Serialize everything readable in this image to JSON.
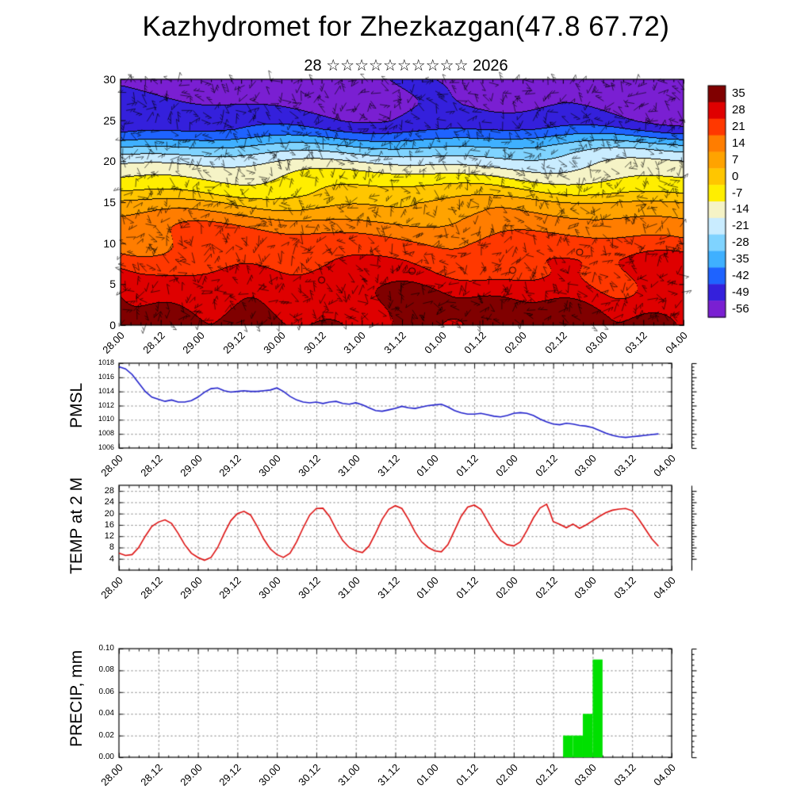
{
  "page": {
    "title": "Kazhydromet for Zhezkazgan(47.8 67.72)",
    "subtitle": "28 ☆☆☆☆☆☆☆☆☆☆ 2026"
  },
  "time_axis": {
    "labels": [
      "28.00",
      "28.12",
      "29.00",
      "29.12",
      "30.00",
      "30.12",
      "31.00",
      "31.12",
      "01.00",
      "01.12",
      "02.00",
      "02.12",
      "03.00",
      "03.12",
      "04.00"
    ],
    "total_hours": 168,
    "major_step": 12,
    "minor_step": 3
  },
  "chart_data": [
    {
      "type": "heatmap",
      "name": "upper-air-temperature-wind-section",
      "ylim": [
        0,
        30
      ],
      "yticks": [
        0,
        5,
        10,
        15,
        20,
        25,
        30
      ],
      "ytick_labels": [
        "0",
        "5",
        "10",
        "15",
        "20",
        "25",
        "30"
      ],
      "colorbar_ticks": [
        35,
        28,
        21,
        14,
        7,
        0,
        -7,
        -14,
        -21,
        -28,
        -35,
        -42,
        -49,
        -56
      ],
      "colorbar_colors": [
        "#800000",
        "#df0000",
        "#ff3800",
        "#ff7d00",
        "#ffa300",
        "#ffc600",
        "#ffee00",
        "#f5f3c6",
        "#c9ecff",
        "#7fd3ff",
        "#3fb0ff",
        "#1e63ff",
        "#3420dc",
        "#7a1fd2"
      ],
      "contour_levels": [
        28,
        21,
        14,
        7,
        0,
        -7,
        -14,
        -21,
        -28,
        -35,
        -42,
        -49,
        -56
      ],
      "mean_profile": [
        [
          0,
          31
        ],
        [
          4,
          26
        ],
        [
          8,
          20
        ],
        [
          10,
          16
        ],
        [
          12,
          11
        ],
        [
          13,
          8
        ],
        [
          14,
          4
        ],
        [
          15,
          1
        ],
        [
          16,
          -5
        ],
        [
          17,
          -9
        ],
        [
          18,
          -13
        ],
        [
          19,
          -17
        ],
        [
          20,
          -22
        ],
        [
          21,
          -28
        ],
        [
          22,
          -35
        ],
        [
          23,
          -43
        ],
        [
          24,
          -50
        ],
        [
          25,
          -54
        ],
        [
          27,
          -57
        ],
        [
          30,
          -60
        ]
      ],
      "wave_amplitude": 2.5,
      "diurnal_surface_amplitude": 4,
      "circle_markers": [
        [
          60,
          5.5
        ],
        [
          87,
          6.6
        ],
        [
          117,
          6.7
        ],
        [
          137,
          8.9
        ]
      ]
    },
    {
      "type": "line",
      "name": "pmsl",
      "label": "PMSL",
      "color": "#2222cc",
      "ylim": [
        1006,
        1018
      ],
      "yticks": [
        1006,
        1008,
        1010,
        1012,
        1014,
        1016,
        1018
      ],
      "ytick_labels": [
        "1006",
        "1008",
        "1010",
        "1012",
        "1014",
        "1016",
        "1018"
      ],
      "ylabel_size": "9px",
      "series": [
        [
          0,
          1017.5
        ],
        [
          2,
          1017.2
        ],
        [
          4,
          1016.4
        ],
        [
          6,
          1015.2
        ],
        [
          8,
          1014.0
        ],
        [
          10,
          1013.2
        ],
        [
          12,
          1012.9
        ],
        [
          14,
          1012.6
        ],
        [
          16,
          1012.8
        ],
        [
          18,
          1012.5
        ],
        [
          20,
          1012.5
        ],
        [
          22,
          1012.7
        ],
        [
          24,
          1013.2
        ],
        [
          26,
          1013.9
        ],
        [
          28,
          1014.4
        ],
        [
          30,
          1014.5
        ],
        [
          32,
          1014.1
        ],
        [
          34,
          1013.9
        ],
        [
          36,
          1014.0
        ],
        [
          38,
          1014.1
        ],
        [
          40,
          1014.0
        ],
        [
          42,
          1014.0
        ],
        [
          44,
          1014.1
        ],
        [
          46,
          1014.2
        ],
        [
          48,
          1014.5
        ],
        [
          50,
          1014.0
        ],
        [
          52,
          1013.3
        ],
        [
          54,
          1012.8
        ],
        [
          56,
          1012.5
        ],
        [
          58,
          1012.4
        ],
        [
          60,
          1012.5
        ],
        [
          62,
          1012.3
        ],
        [
          64,
          1012.5
        ],
        [
          66,
          1012.6
        ],
        [
          68,
          1012.3
        ],
        [
          70,
          1012.2
        ],
        [
          72,
          1012.4
        ],
        [
          74,
          1012.1
        ],
        [
          76,
          1011.7
        ],
        [
          78,
          1011.3
        ],
        [
          80,
          1011.2
        ],
        [
          82,
          1011.4
        ],
        [
          84,
          1011.6
        ],
        [
          86,
          1011.9
        ],
        [
          88,
          1011.7
        ],
        [
          90,
          1011.6
        ],
        [
          92,
          1011.8
        ],
        [
          94,
          1012.0
        ],
        [
          96,
          1012.1
        ],
        [
          98,
          1012.2
        ],
        [
          100,
          1011.8
        ],
        [
          102,
          1011.3
        ],
        [
          104,
          1011.0
        ],
        [
          106,
          1010.8
        ],
        [
          108,
          1010.8
        ],
        [
          110,
          1010.9
        ],
        [
          112,
          1010.7
        ],
        [
          114,
          1010.5
        ],
        [
          116,
          1010.4
        ],
        [
          118,
          1010.6
        ],
        [
          120,
          1010.9
        ],
        [
          122,
          1011.0
        ],
        [
          124,
          1010.9
        ],
        [
          126,
          1010.6
        ],
        [
          128,
          1010.1
        ],
        [
          130,
          1009.7
        ],
        [
          132,
          1009.4
        ],
        [
          134,
          1009.3
        ],
        [
          136,
          1009.5
        ],
        [
          138,
          1009.4
        ],
        [
          140,
          1009.2
        ],
        [
          142,
          1009.1
        ],
        [
          144,
          1008.9
        ],
        [
          146,
          1008.5
        ],
        [
          148,
          1008.1
        ],
        [
          150,
          1007.8
        ],
        [
          152,
          1007.6
        ],
        [
          154,
          1007.5
        ],
        [
          156,
          1007.6
        ],
        [
          158,
          1007.7
        ],
        [
          160,
          1007.8
        ],
        [
          162,
          1007.9
        ],
        [
          164,
          1008.0
        ]
      ]
    },
    {
      "type": "line",
      "name": "temp-2m",
      "label": "TEMP at 2 M",
      "color": "#dd1111",
      "ylim": [
        0,
        30
      ],
      "yticks": [
        4,
        8,
        12,
        16,
        20,
        24,
        28
      ],
      "ytick_labels": [
        "4",
        "8",
        "12",
        "16",
        "20",
        "24",
        "28"
      ],
      "ylabel_size": "11px",
      "series": [
        [
          0,
          6
        ],
        [
          2,
          5.2
        ],
        [
          4,
          5.5
        ],
        [
          6,
          8
        ],
        [
          8,
          12
        ],
        [
          10,
          15.5
        ],
        [
          12,
          17
        ],
        [
          14,
          17.8
        ],
        [
          16,
          16.5
        ],
        [
          18,
          13
        ],
        [
          20,
          9
        ],
        [
          22,
          6
        ],
        [
          24,
          4.5
        ],
        [
          26,
          3.5
        ],
        [
          28,
          4.5
        ],
        [
          30,
          8
        ],
        [
          32,
          13
        ],
        [
          34,
          17.5
        ],
        [
          36,
          20
        ],
        [
          38,
          20.8
        ],
        [
          40,
          19.5
        ],
        [
          42,
          15.5
        ],
        [
          44,
          11
        ],
        [
          46,
          7.5
        ],
        [
          48,
          5.5
        ],
        [
          50,
          4.5
        ],
        [
          52,
          6
        ],
        [
          54,
          10
        ],
        [
          56,
          15
        ],
        [
          58,
          19.5
        ],
        [
          60,
          21.8
        ],
        [
          62,
          21.9
        ],
        [
          64,
          19
        ],
        [
          66,
          14.5
        ],
        [
          68,
          10.5
        ],
        [
          70,
          8
        ],
        [
          72,
          6.8
        ],
        [
          74,
          6.2
        ],
        [
          76,
          8.5
        ],
        [
          78,
          13
        ],
        [
          80,
          18
        ],
        [
          82,
          21.5
        ],
        [
          84,
          22.8
        ],
        [
          86,
          21.8
        ],
        [
          88,
          18
        ],
        [
          90,
          13.5
        ],
        [
          92,
          10
        ],
        [
          94,
          8
        ],
        [
          96,
          6.8
        ],
        [
          98,
          6.5
        ],
        [
          100,
          9
        ],
        [
          102,
          14
        ],
        [
          104,
          19
        ],
        [
          106,
          22.3
        ],
        [
          108,
          23
        ],
        [
          110,
          21.5
        ],
        [
          112,
          17.5
        ],
        [
          114,
          13.5
        ],
        [
          116,
          10.5
        ],
        [
          118,
          9
        ],
        [
          120,
          8.6
        ],
        [
          122,
          10
        ],
        [
          124,
          14
        ],
        [
          126,
          18.5
        ],
        [
          128,
          22
        ],
        [
          130,
          23.3
        ],
        [
          131,
          20.5
        ],
        [
          132,
          17.2
        ],
        [
          134,
          16.2
        ],
        [
          136,
          15
        ],
        [
          138,
          16.3
        ],
        [
          140,
          14.8
        ],
        [
          142,
          16
        ],
        [
          144,
          17.5
        ],
        [
          146,
          19
        ],
        [
          148,
          20.3
        ],
        [
          150,
          21.2
        ],
        [
          152,
          21.6
        ],
        [
          154,
          21.8
        ],
        [
          156,
          21
        ],
        [
          158,
          18
        ],
        [
          160,
          14.5
        ],
        [
          162,
          11
        ],
        [
          164,
          8.5
        ]
      ]
    },
    {
      "type": "bar",
      "name": "precip",
      "label": "PRECIP, mm",
      "color": "#00e000",
      "ylim": [
        0,
        0.1
      ],
      "yticks": [
        0,
        0.02,
        0.04,
        0.06,
        0.08,
        0.1
      ],
      "ytick_labels": [
        "0.00",
        "0.02",
        "0.04",
        "0.06",
        "0.08",
        "0.10"
      ],
      "ylabel_size": "10px",
      "bar_width_hours": 3,
      "bars": [
        [
          135,
          0.02
        ],
        [
          138,
          0.02
        ],
        [
          141,
          0.04
        ],
        [
          144,
          0.09
        ]
      ]
    }
  ]
}
